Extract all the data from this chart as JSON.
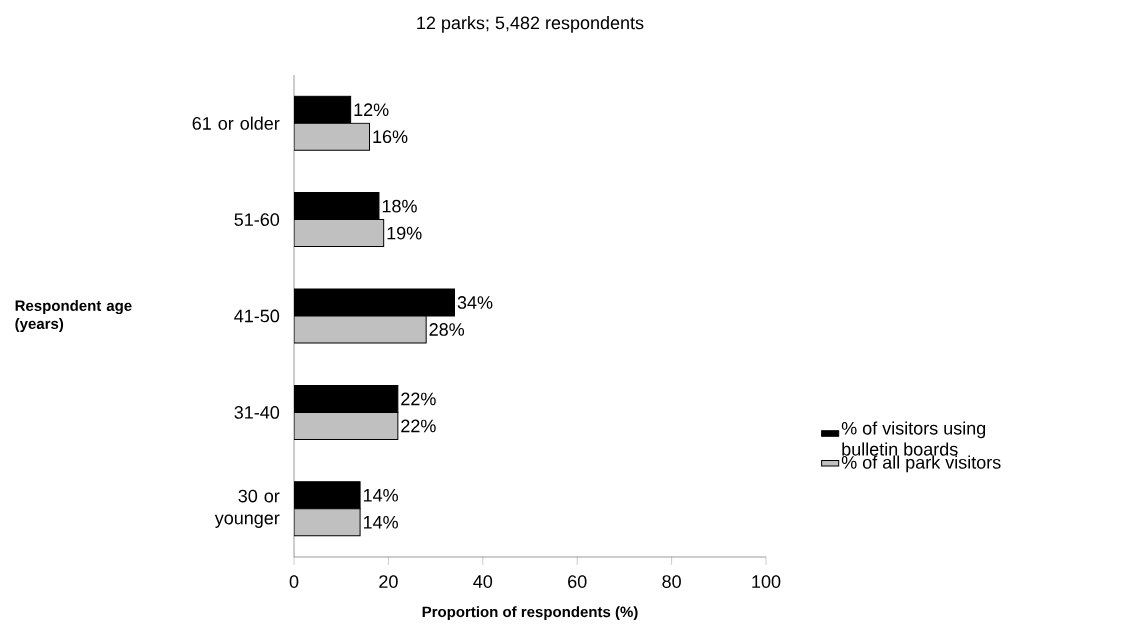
{
  "chart_data": {
    "type": "bar",
    "orientation": "horizontal",
    "title": "12 parks; 5,482 respondents",
    "xlabel": "Proportion of respondents (%)",
    "ylabel": "Respondent age (years)",
    "categories": [
      "61 or older",
      "51-60",
      "41-50",
      "31-40",
      "30 or younger"
    ],
    "series": [
      {
        "name": "% of visitors using bulletin boards",
        "color": "#000000",
        "values": [
          12,
          18,
          34,
          22,
          14
        ],
        "value_labels": [
          "12%",
          "18%",
          "34%",
          "22%",
          "14%"
        ]
      },
      {
        "name": "% of all park visitors",
        "color": "#c0c0c0",
        "values": [
          16,
          19,
          28,
          22,
          14
        ],
        "value_labels": [
          "16%",
          "19%",
          "28%",
          "22%",
          "14%"
        ]
      }
    ],
    "xlim": [
      0,
      100
    ],
    "xticks": [
      0,
      20,
      40,
      60,
      80,
      100
    ],
    "grid": false,
    "legend": "right"
  }
}
